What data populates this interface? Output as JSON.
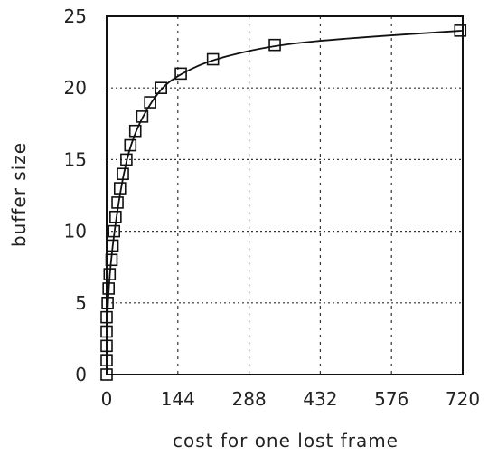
{
  "chart_data": {
    "type": "scatter",
    "title": "",
    "xlabel": "cost for one lost frame",
    "ylabel": "buffer size",
    "xlim": [
      0,
      720
    ],
    "ylim": [
      0,
      25
    ],
    "x_ticks": [
      0,
      144,
      288,
      432,
      576,
      720
    ],
    "y_ticks": [
      0,
      5,
      10,
      15,
      20,
      25
    ],
    "x_tick_labels": [
      "0",
      "144",
      "288",
      "432",
      "576",
      "720"
    ],
    "y_tick_labels": [
      "0",
      "5",
      "10",
      "15",
      "20",
      "25"
    ],
    "grid": true,
    "series": [
      {
        "marker": "square",
        "points": [
          {
            "x": 0,
            "y": 0
          },
          {
            "x": 0,
            "y": 1
          },
          {
            "x": 0,
            "y": 2
          },
          {
            "x": 0,
            "y": 3
          },
          {
            "x": 0,
            "y": 4
          },
          {
            "x": 2,
            "y": 5
          },
          {
            "x": 4,
            "y": 6
          },
          {
            "x": 6,
            "y": 7
          },
          {
            "x": 10,
            "y": 8
          },
          {
            "x": 12,
            "y": 9
          },
          {
            "x": 15,
            "y": 10
          },
          {
            "x": 18,
            "y": 11
          },
          {
            "x": 22,
            "y": 12
          },
          {
            "x": 27,
            "y": 13
          },
          {
            "x": 33,
            "y": 14
          },
          {
            "x": 40,
            "y": 15
          },
          {
            "x": 48,
            "y": 16
          },
          {
            "x": 58,
            "y": 17
          },
          {
            "x": 72,
            "y": 18
          },
          {
            "x": 88,
            "y": 19
          },
          {
            "x": 110,
            "y": 20
          },
          {
            "x": 150,
            "y": 21
          },
          {
            "x": 215,
            "y": 22
          },
          {
            "x": 340,
            "y": 23
          },
          {
            "x": 715,
            "y": 24
          }
        ]
      },
      {
        "style": "line",
        "points": [
          {
            "x": 0,
            "y": 3
          },
          {
            "x": 5,
            "y": 6.5
          },
          {
            "x": 12,
            "y": 9
          },
          {
            "x": 22,
            "y": 11.5
          },
          {
            "x": 33,
            "y": 13.8
          },
          {
            "x": 48,
            "y": 16
          },
          {
            "x": 72,
            "y": 18
          },
          {
            "x": 110,
            "y": 20
          },
          {
            "x": 150,
            "y": 21
          },
          {
            "x": 215,
            "y": 22
          },
          {
            "x": 340,
            "y": 23
          },
          {
            "x": 500,
            "y": 23.5
          },
          {
            "x": 720,
            "y": 24
          }
        ]
      }
    ],
    "colors": {
      "ink": "#111111",
      "grid": "#333333",
      "background": "#ffffff"
    }
  }
}
